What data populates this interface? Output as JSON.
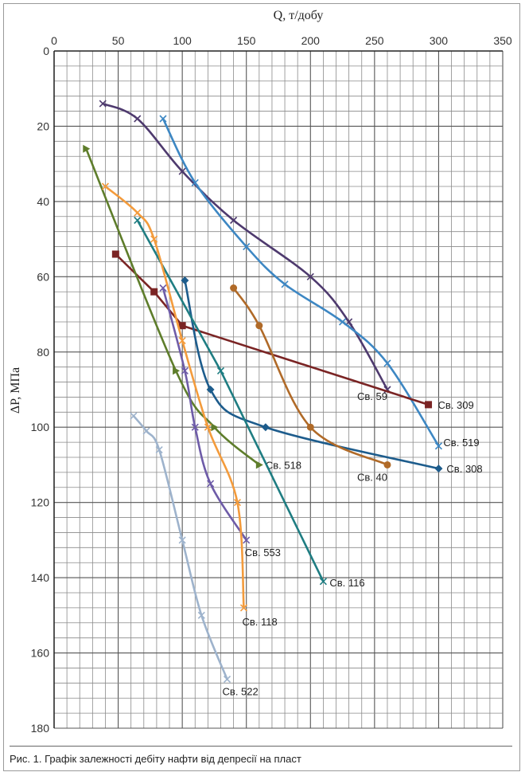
{
  "caption": "Рис. 1. Графік залежності дебіту нафти від депресії на пласт",
  "chart_data": {
    "type": "line",
    "title": "",
    "xlabel": "Q, т/добу",
    "ylabel": "ΔP, МПа",
    "xlim": [
      0,
      350
    ],
    "ylim": [
      0,
      180
    ],
    "y_inverted": true,
    "x_axis_position": "top",
    "x_ticks": [
      0,
      50,
      100,
      150,
      200,
      250,
      300,
      350
    ],
    "y_ticks": [
      0,
      20,
      40,
      60,
      80,
      100,
      120,
      140,
      160,
      180
    ],
    "grid": true,
    "grid_minor_x": 10,
    "grid_minor_y": 4,
    "series": [
      {
        "name": "Св. 59",
        "color": "#4e3a6e",
        "marker": "cross",
        "x": [
          38,
          65,
          100,
          140,
          200,
          230,
          260
        ],
        "y": [
          14,
          18,
          32,
          45,
          60,
          72,
          90
        ]
      },
      {
        "name": "Св. 519",
        "color": "#3d87c3",
        "marker": "cross",
        "x": [
          85,
          110,
          150,
          180,
          225,
          260,
          300
        ],
        "y": [
          18,
          35,
          52,
          62,
          72,
          83,
          105
        ]
      },
      {
        "name": "Св. 309",
        "color": "#7a2424",
        "marker": "square",
        "x": [
          48,
          78,
          100,
          292
        ],
        "y": [
          54,
          64,
          73,
          94
        ]
      },
      {
        "name": "Св. 308",
        "color": "#1d5c8c",
        "marker": "diamond",
        "x": [
          102,
          122,
          165,
          300
        ],
        "y": [
          61,
          90,
          100,
          111
        ]
      },
      {
        "name": "Св. 40",
        "color": "#b06a28",
        "marker": "circle",
        "x": [
          140,
          160,
          200,
          260
        ],
        "y": [
          63,
          73,
          100,
          110
        ]
      },
      {
        "name": "Св. 518",
        "color": "#5e7d2b",
        "marker": "triangle",
        "x": [
          25,
          95,
          125,
          160
        ],
        "y": [
          26,
          85,
          100,
          110
        ]
      },
      {
        "name": "Св. 116",
        "color": "#1f7d82",
        "marker": "cross",
        "x": [
          65,
          130,
          210
        ],
        "y": [
          45,
          85,
          141
        ]
      },
      {
        "name": "Св. 553",
        "color": "#6e5ca8",
        "marker": "cross",
        "x": [
          85,
          102,
          110,
          122,
          150
        ],
        "y": [
          63,
          85,
          100,
          115,
          130
        ]
      },
      {
        "name": "Св. 118",
        "color": "#f39b3c",
        "marker": "cross",
        "x": [
          40,
          65,
          78,
          100,
          120,
          143,
          148
        ],
        "y": [
          36,
          43,
          50,
          77,
          100,
          120,
          148
        ]
      },
      {
        "name": "Св. 522",
        "color": "#9eb3cc",
        "marker": "cross",
        "x": [
          62,
          72,
          82,
          100,
          115,
          135
        ],
        "y": [
          97,
          101,
          106,
          130,
          150,
          167
        ]
      }
    ]
  }
}
